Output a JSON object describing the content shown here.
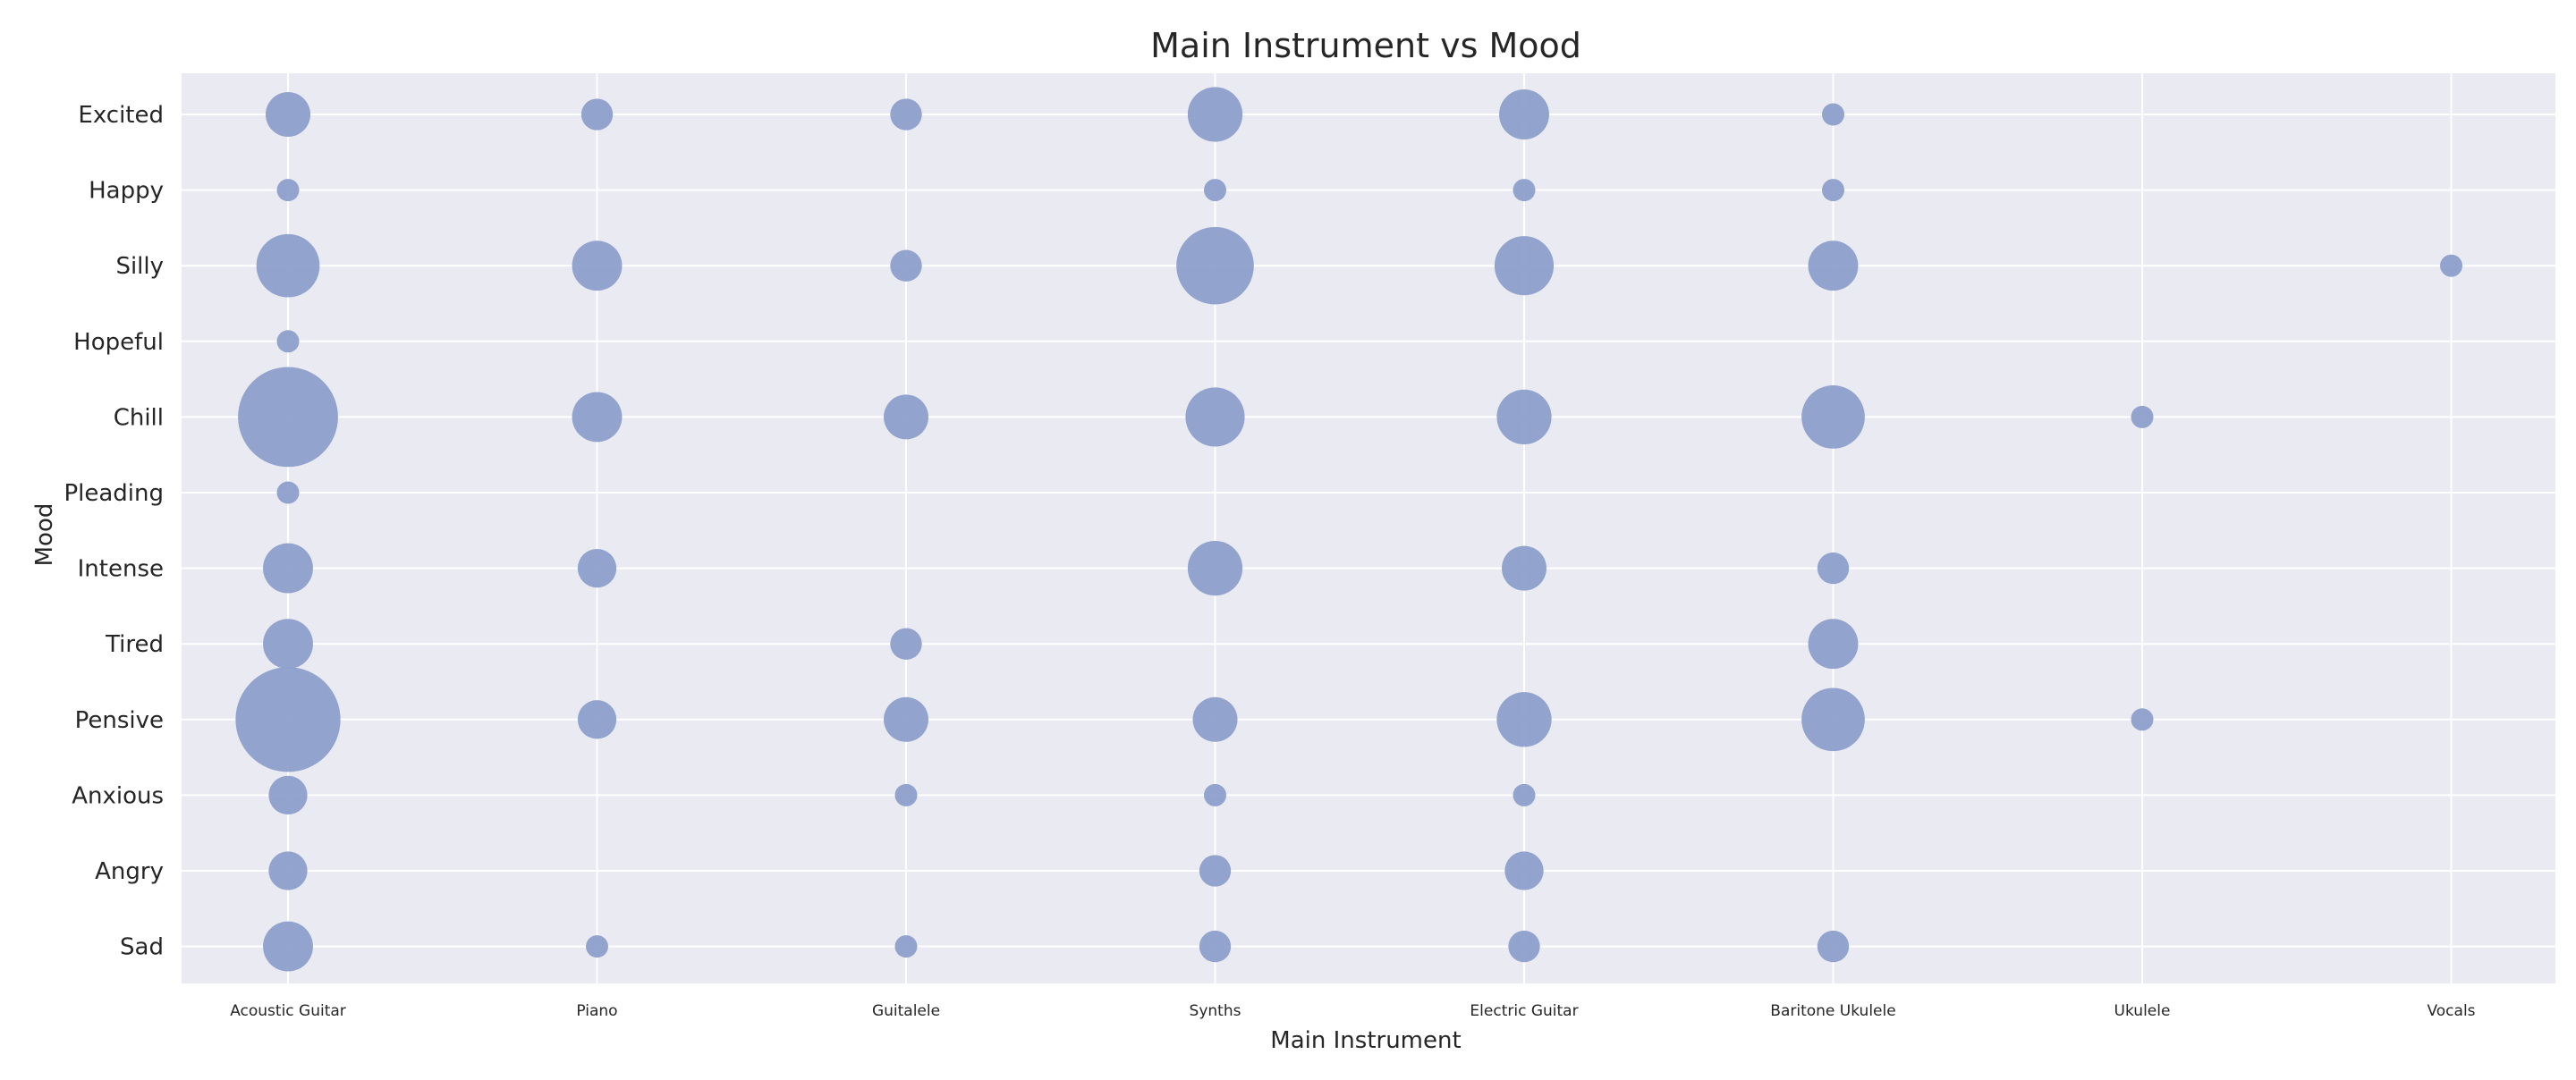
{
  "chart_data": {
    "type": "scatter",
    "title": "Main Instrument vs Mood",
    "xlabel": "Main Instrument",
    "ylabel": "Mood",
    "x_categories": [
      "Acoustic Guitar",
      "Piano",
      "Guitalele",
      "Synths",
      "Electric Guitar",
      "Baritone Ukulele",
      "Ukulele",
      "Vocals"
    ],
    "y_categories": [
      "Excited",
      "Happy",
      "Silly",
      "Hopeful",
      "Chill",
      "Pleading",
      "Intense",
      "Tired",
      "Pensive",
      "Anxious",
      "Angry",
      "Sad"
    ],
    "size_encoding": "count",
    "grid": true,
    "colors": {
      "background": "#eaeaf2",
      "grid": "#ffffff",
      "marker": "#8da0cb"
    },
    "points": [
      {
        "x": "Acoustic Guitar",
        "y": "Excited",
        "count": 4
      },
      {
        "x": "Piano",
        "y": "Excited",
        "count": 2
      },
      {
        "x": "Guitalele",
        "y": "Excited",
        "count": 2
      },
      {
        "x": "Synths",
        "y": "Excited",
        "count": 6
      },
      {
        "x": "Electric Guitar",
        "y": "Excited",
        "count": 5
      },
      {
        "x": "Baritone Ukulele",
        "y": "Excited",
        "count": 1
      },
      {
        "x": "Acoustic Guitar",
        "y": "Happy",
        "count": 1
      },
      {
        "x": "Synths",
        "y": "Happy",
        "count": 1
      },
      {
        "x": "Electric Guitar",
        "y": "Happy",
        "count": 1
      },
      {
        "x": "Baritone Ukulele",
        "y": "Happy",
        "count": 1
      },
      {
        "x": "Acoustic Guitar",
        "y": "Silly",
        "count": 8
      },
      {
        "x": "Piano",
        "y": "Silly",
        "count": 5
      },
      {
        "x": "Guitalele",
        "y": "Silly",
        "count": 2
      },
      {
        "x": "Synths",
        "y": "Silly",
        "count": 12
      },
      {
        "x": "Electric Guitar",
        "y": "Silly",
        "count": 7
      },
      {
        "x": "Baritone Ukulele",
        "y": "Silly",
        "count": 5
      },
      {
        "x": "Vocals",
        "y": "Silly",
        "count": 1
      },
      {
        "x": "Acoustic Guitar",
        "y": "Hopeful",
        "count": 1
      },
      {
        "x": "Acoustic Guitar",
        "y": "Chill",
        "count": 20
      },
      {
        "x": "Piano",
        "y": "Chill",
        "count": 5
      },
      {
        "x": "Guitalele",
        "y": "Chill",
        "count": 4
      },
      {
        "x": "Synths",
        "y": "Chill",
        "count": 7
      },
      {
        "x": "Electric Guitar",
        "y": "Chill",
        "count": 6
      },
      {
        "x": "Baritone Ukulele",
        "y": "Chill",
        "count": 8
      },
      {
        "x": "Ukulele",
        "y": "Chill",
        "count": 1
      },
      {
        "x": "Acoustic Guitar",
        "y": "Pleading",
        "count": 1
      },
      {
        "x": "Acoustic Guitar",
        "y": "Intense",
        "count": 5
      },
      {
        "x": "Piano",
        "y": "Intense",
        "count": 3
      },
      {
        "x": "Synths",
        "y": "Intense",
        "count": 6
      },
      {
        "x": "Electric Guitar",
        "y": "Intense",
        "count": 4
      },
      {
        "x": "Baritone Ukulele",
        "y": "Intense",
        "count": 2
      },
      {
        "x": "Acoustic Guitar",
        "y": "Tired",
        "count": 5
      },
      {
        "x": "Guitalele",
        "y": "Tired",
        "count": 2
      },
      {
        "x": "Baritone Ukulele",
        "y": "Tired",
        "count": 5
      },
      {
        "x": "Acoustic Guitar",
        "y": "Pensive",
        "count": 22
      },
      {
        "x": "Piano",
        "y": "Pensive",
        "count": 3
      },
      {
        "x": "Guitalele",
        "y": "Pensive",
        "count": 4
      },
      {
        "x": "Synths",
        "y": "Pensive",
        "count": 4
      },
      {
        "x": "Electric Guitar",
        "y": "Pensive",
        "count": 6
      },
      {
        "x": "Baritone Ukulele",
        "y": "Pensive",
        "count": 8
      },
      {
        "x": "Ukulele",
        "y": "Pensive",
        "count": 1
      },
      {
        "x": "Acoustic Guitar",
        "y": "Anxious",
        "count": 3
      },
      {
        "x": "Guitalele",
        "y": "Anxious",
        "count": 1
      },
      {
        "x": "Synths",
        "y": "Anxious",
        "count": 1
      },
      {
        "x": "Electric Guitar",
        "y": "Anxious",
        "count": 1
      },
      {
        "x": "Acoustic Guitar",
        "y": "Angry",
        "count": 3
      },
      {
        "x": "Synths",
        "y": "Angry",
        "count": 2
      },
      {
        "x": "Electric Guitar",
        "y": "Angry",
        "count": 3
      },
      {
        "x": "Acoustic Guitar",
        "y": "Sad",
        "count": 5
      },
      {
        "x": "Piano",
        "y": "Sad",
        "count": 1
      },
      {
        "x": "Guitalele",
        "y": "Sad",
        "count": 1
      },
      {
        "x": "Synths",
        "y": "Sad",
        "count": 2
      },
      {
        "x": "Electric Guitar",
        "y": "Sad",
        "count": 2
      },
      {
        "x": "Baritone Ukulele",
        "y": "Sad",
        "count": 2
      }
    ]
  }
}
